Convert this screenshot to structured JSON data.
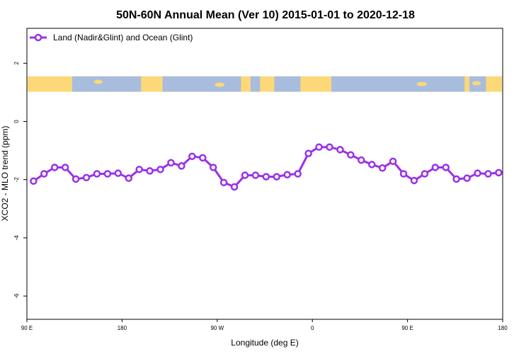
{
  "chart_data": {
    "type": "line",
    "title": "50N-60N Annual Mean (Ver 10)   2015-01-01 to 2020-12-18",
    "xlabel": "Longitude (deg E)",
    "ylabel": "XCO2 - MLO trend (ppm)",
    "x_ticks": [
      "90 E",
      "180",
      "90 W",
      "0",
      "90 E",
      "180"
    ],
    "y_ticks": [
      "2",
      "0",
      "-2",
      "-4",
      "-6"
    ],
    "y_tick_values": [
      2,
      0,
      -2,
      -4,
      -6
    ],
    "ylim": [
      -6.8,
      3.2
    ],
    "xlim": [
      90,
      450
    ],
    "series": [
      {
        "name": "Land (Nadir&Glint) and Ocean (Glint)",
        "color": "#9b30e8",
        "x": [
          95,
          103,
          111,
          119,
          127,
          135,
          143,
          151,
          159,
          167,
          175,
          183,
          191,
          199,
          207,
          215,
          223,
          231,
          239,
          247,
          255,
          263,
          271,
          279,
          287,
          295,
          303,
          311,
          319,
          327,
          335,
          343,
          351,
          359,
          367,
          375,
          383,
          391,
          399,
          407,
          415,
          423,
          431,
          439,
          447
        ],
        "values": [
          -2.05,
          -1.8,
          -1.58,
          -1.58,
          -1.98,
          -1.93,
          -1.8,
          -1.8,
          -1.78,
          -1.95,
          -1.65,
          -1.7,
          -1.65,
          -1.42,
          -1.53,
          -1.2,
          -1.25,
          -1.58,
          -2.1,
          -2.25,
          -1.85,
          -1.85,
          -1.9,
          -1.9,
          -1.83,
          -1.8,
          -1.1,
          -0.88,
          -0.88,
          -0.97,
          -1.15,
          -1.33,
          -1.48,
          -1.6,
          -1.37,
          -1.8,
          -2.03,
          -1.8,
          -1.58,
          -1.58,
          -1.98,
          -1.95,
          -1.78,
          -1.8,
          -1.76
        ]
      }
    ],
    "map_strip": {
      "land_color": "#fdd878",
      "ocean_color": "#a8bddd",
      "y_top": 1.55,
      "y_bottom": 1.02
    },
    "legend_position": "top-left",
    "grid": false
  }
}
